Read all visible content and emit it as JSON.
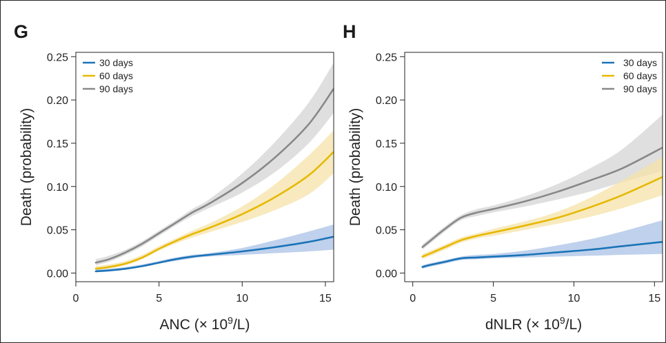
{
  "chart_data": [
    {
      "type": "line",
      "panel": "G",
      "xlabel_main": "ANC (× 10",
      "xlabel_sup": "9",
      "xlabel_end": "/L)",
      "ylabel": "Death (probability)",
      "xlim": [
        0,
        15.5
      ],
      "ylim": [
        -0.01,
        0.255
      ],
      "x_ticks": [
        "0",
        "5",
        "10",
        "15"
      ],
      "y_ticks": [
        "0.00",
        "0.05",
        "0.10",
        "0.15",
        "0.20",
        "0.25"
      ],
      "legend_position": "top-left",
      "series": [
        {
          "name": "30 days",
          "color": "#1a73b8",
          "band_color": "#a9c1e6",
          "x": [
            1.2,
            2,
            3,
            4,
            5,
            6,
            7,
            8,
            10,
            12,
            14,
            15.5
          ],
          "y": [
            0.002,
            0.003,
            0.005,
            0.008,
            0.012,
            0.016,
            0.019,
            0.021,
            0.025,
            0.03,
            0.036,
            0.042
          ],
          "lower": [
            0.001,
            0.002,
            0.004,
            0.007,
            0.011,
            0.014,
            0.017,
            0.019,
            0.021,
            0.023,
            0.025,
            0.027
          ],
          "upper": [
            0.004,
            0.005,
            0.007,
            0.01,
            0.014,
            0.018,
            0.021,
            0.023,
            0.029,
            0.038,
            0.048,
            0.056
          ]
        },
        {
          "name": "60 days",
          "color": "#e6b800",
          "band_color": "#f5e3a8",
          "x": [
            1.2,
            2,
            3,
            4,
            5,
            6,
            7,
            8,
            10,
            12,
            14,
            15.5
          ],
          "y": [
            0.005,
            0.007,
            0.011,
            0.018,
            0.028,
            0.037,
            0.045,
            0.052,
            0.068,
            0.088,
            0.113,
            0.14
          ],
          "lower": [
            0.003,
            0.005,
            0.009,
            0.016,
            0.026,
            0.034,
            0.041,
            0.047,
            0.059,
            0.073,
            0.091,
            0.115
          ],
          "upper": [
            0.008,
            0.01,
            0.014,
            0.021,
            0.031,
            0.04,
            0.049,
            0.057,
            0.077,
            0.103,
            0.136,
            0.165
          ]
        },
        {
          "name": "90 days",
          "color": "#888888",
          "band_color": "#d4d4d4",
          "x": [
            1.2,
            2,
            3,
            4,
            5,
            6,
            7,
            8,
            10,
            12,
            14,
            15.5
          ],
          "y": [
            0.012,
            0.016,
            0.024,
            0.034,
            0.046,
            0.058,
            0.07,
            0.08,
            0.104,
            0.134,
            0.172,
            0.213
          ],
          "lower": [
            0.009,
            0.013,
            0.021,
            0.031,
            0.043,
            0.055,
            0.066,
            0.075,
            0.093,
            0.117,
            0.15,
            0.185
          ],
          "upper": [
            0.016,
            0.02,
            0.027,
            0.037,
            0.049,
            0.061,
            0.074,
            0.085,
            0.115,
            0.152,
            0.197,
            0.243
          ]
        }
      ]
    },
    {
      "type": "line",
      "panel": "H",
      "xlabel_main": "dNLR (× 10",
      "xlabel_sup": "9",
      "xlabel_end": "/L)",
      "ylabel": "Death (probability)",
      "xlim": [
        -0.5,
        15.5
      ],
      "ylim": [
        -0.01,
        0.255
      ],
      "x_ticks": [
        "0",
        "5",
        "10",
        "15"
      ],
      "y_ticks": [
        "0.00",
        "0.05",
        "0.10",
        "0.15",
        "0.20",
        "0.25"
      ],
      "legend_position": "top-right",
      "series": [
        {
          "name": "30 days",
          "color": "#1a73b8",
          "band_color": "#a9c1e6",
          "x": [
            0.6,
            1,
            2,
            3,
            4,
            5,
            7,
            9,
            11,
            13,
            15.5
          ],
          "y": [
            0.007,
            0.009,
            0.013,
            0.017,
            0.018,
            0.019,
            0.021,
            0.024,
            0.027,
            0.031,
            0.036
          ],
          "lower": [
            0.005,
            0.007,
            0.011,
            0.015,
            0.016,
            0.017,
            0.018,
            0.019,
            0.02,
            0.021,
            0.022
          ],
          "upper": [
            0.009,
            0.011,
            0.015,
            0.019,
            0.021,
            0.022,
            0.026,
            0.032,
            0.039,
            0.048,
            0.061
          ]
        },
        {
          "name": "60 days",
          "color": "#e6b800",
          "band_color": "#f5e3a8",
          "x": [
            0.6,
            1,
            2,
            3,
            4,
            5,
            7,
            9,
            11,
            13,
            15.5
          ],
          "y": [
            0.019,
            0.022,
            0.03,
            0.038,
            0.043,
            0.047,
            0.055,
            0.064,
            0.076,
            0.09,
            0.111
          ],
          "lower": [
            0.016,
            0.019,
            0.027,
            0.035,
            0.04,
            0.043,
            0.05,
            0.057,
            0.065,
            0.075,
            0.09
          ],
          "upper": [
            0.022,
            0.025,
            0.033,
            0.041,
            0.046,
            0.051,
            0.06,
            0.071,
            0.087,
            0.107,
            0.134
          ]
        },
        {
          "name": "90 days",
          "color": "#888888",
          "band_color": "#d4d4d4",
          "x": [
            0.6,
            1,
            2,
            3,
            4,
            5,
            7,
            9,
            11,
            13,
            15.5
          ],
          "y": [
            0.03,
            0.036,
            0.051,
            0.064,
            0.07,
            0.074,
            0.083,
            0.094,
            0.107,
            0.121,
            0.145
          ],
          "lower": [
            0.027,
            0.033,
            0.048,
            0.061,
            0.066,
            0.07,
            0.077,
            0.085,
            0.094,
            0.105,
            0.118
          ],
          "upper": [
            0.033,
            0.039,
            0.054,
            0.067,
            0.074,
            0.078,
            0.089,
            0.103,
            0.121,
            0.143,
            0.183
          ]
        }
      ]
    }
  ]
}
